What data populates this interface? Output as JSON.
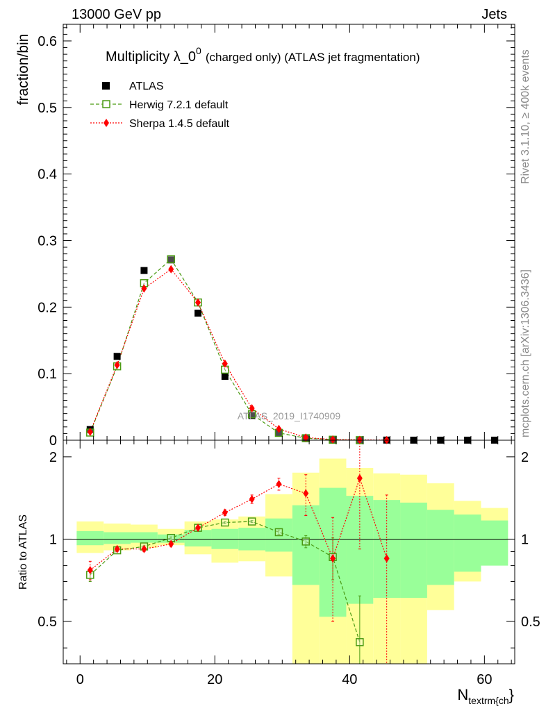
{
  "header": {
    "left": "13000 GeV pp",
    "right": "Jets"
  },
  "side_texts": {
    "rivet": "Rivet 3.1.10, ≥ 400k events",
    "mcplots": "mcplots.cern.ch [arXiv:1306.3436]"
  },
  "chart_data": {
    "type": "scatter",
    "title": "Multiplicity λ_0",
    "title_superscript": "0",
    "title_suffix": "(charged only) (ATLAS jet fragmentation)",
    "watermark": "ATLAS_2019_I1740909",
    "xlabel": "N",
    "xlabel_sub": "textrm{ch",
    "xlabel_tail": "}",
    "ylabel": "fraction/bin",
    "ratio_ylabel": "Ratio to ATLAS",
    "xlim": [
      -2.5,
      64.5
    ],
    "ylim": [
      0,
      0.625
    ],
    "ratio_ylim": [
      0.35,
      2.3
    ],
    "x_ticks": [
      "0",
      "20",
      "40",
      "60"
    ],
    "y_ticks": [
      "0",
      "0.1",
      "0.2",
      "0.3",
      "0.4",
      "0.5",
      "0.6"
    ],
    "ratio_y_ticks": [
      "0.5",
      "1",
      "2"
    ],
    "bin_edges": [
      -0.5,
      3.5,
      7.5,
      11.5,
      15.5,
      19.5,
      23.5,
      27.5,
      31.5,
      35.5,
      39.5,
      43.5,
      47.5,
      51.5,
      55.5,
      59.5,
      63.5
    ],
    "x": [
      1.5,
      5.5,
      9.5,
      13.5,
      17.5,
      21.5,
      25.5,
      29.5,
      33.5,
      37.5,
      41.5,
      45.5,
      49.5,
      53.5,
      57.5,
      61.5
    ],
    "legend": [
      "ATLAS",
      "Herwig 7.2.1 default",
      "Sherpa 1.4.5 default"
    ],
    "series": [
      {
        "name": "ATLAS",
        "color": "#000000",
        "values": [
          0.016,
          0.126,
          0.255,
          0.271,
          0.191,
          0.096,
          0.037,
          0.011,
          0.003,
          0.0008,
          0.0003,
          0.0002,
          0.0001,
          0.0001,
          0.0001,
          0.0001
        ]
      },
      {
        "name": "Herwig 7.2.1 default",
        "color": "#4a9a12",
        "values": [
          0.0115,
          0.111,
          0.236,
          0.272,
          0.207,
          0.106,
          0.039,
          0.011,
          0.003,
          0.0007,
          0.0001
        ],
        "ratio": [
          0.74,
          0.91,
          0.94,
          1.01,
          1.1,
          1.15,
          1.16,
          1.06,
          0.98,
          0.86,
          0.42
        ],
        "ratio_err": [
          0.04,
          0.01,
          0.01,
          0.01,
          0.01,
          0.01,
          0.01,
          0.02,
          0.05,
          0.15,
          0.2
        ]
      },
      {
        "name": "Sherpa 1.4.5 default",
        "color": "#ff0000",
        "values": [
          0.0125,
          0.113,
          0.228,
          0.257,
          0.207,
          0.115,
          0.048,
          0.017,
          0.004,
          0.001,
          0.0005,
          0.0002
        ],
        "ratio": [
          0.77,
          0.92,
          0.92,
          0.96,
          1.1,
          1.25,
          1.4,
          1.59,
          1.47,
          0.85,
          1.67,
          0.85
        ],
        "ratio_err": [
          0.06,
          0.02,
          0.02,
          0.02,
          0.02,
          0.03,
          0.05,
          0.08,
          0.25,
          0.35,
          0.75,
          0.6
        ]
      }
    ],
    "ratio_band_inner": [
      [
        0.95,
        1.07
      ],
      [
        0.96,
        1.06
      ],
      [
        0.97,
        1.06
      ],
      [
        0.97,
        1.04
      ],
      [
        0.94,
        1.08
      ],
      [
        0.92,
        1.09
      ],
      [
        0.91,
        1.1
      ],
      [
        0.9,
        1.19
      ],
      [
        0.68,
        1.33
      ],
      [
        0.52,
        1.54
      ],
      [
        0.58,
        1.44
      ],
      [
        0.61,
        1.39
      ],
      [
        0.61,
        1.36
      ],
      [
        0.68,
        1.28
      ],
      [
        0.76,
        1.23
      ],
      [
        0.8,
        1.17
      ]
    ],
    "ratio_band_outer": [
      [
        0.89,
        1.16
      ],
      [
        0.91,
        1.14
      ],
      [
        0.93,
        1.13
      ],
      [
        0.95,
        1.09
      ],
      [
        0.88,
        1.16
      ],
      [
        0.82,
        1.18
      ],
      [
        0.83,
        1.21
      ],
      [
        0.73,
        1.46
      ],
      [
        0.3,
        1.75
      ],
      [
        0.3,
        1.97
      ],
      [
        0.3,
        1.82
      ],
      [
        0.3,
        1.74
      ],
      [
        0.3,
        1.72
      ],
      [
        0.55,
        1.6
      ],
      [
        0.7,
        1.38
      ],
      [
        0.82,
        1.3
      ]
    ]
  }
}
